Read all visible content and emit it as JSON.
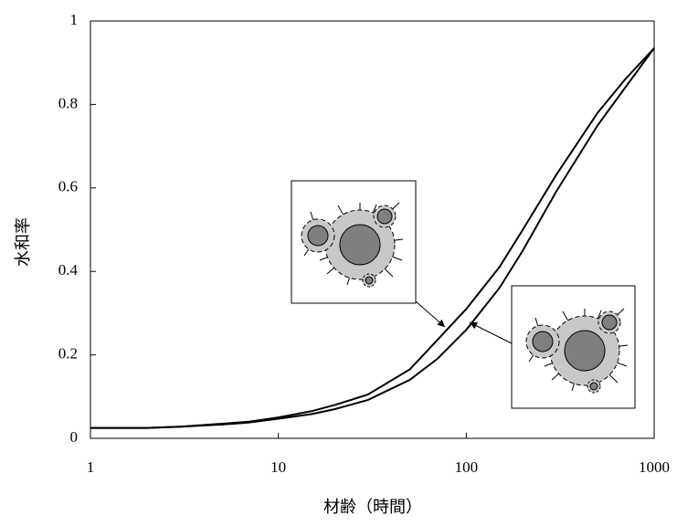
{
  "chart_data": {
    "type": "line",
    "xlabel": "材齢（時間）",
    "ylabel": "水和率",
    "x": [
      1,
      2,
      3,
      5,
      7,
      10,
      15,
      20,
      30,
      50,
      70,
      100,
      150,
      200,
      300,
      500,
      700,
      1000
    ],
    "series": [
      {
        "color": "#000000",
        "values": [
          0.025,
          0.025,
          0.028,
          0.035,
          0.04,
          0.05,
          0.065,
          0.08,
          0.105,
          0.165,
          0.235,
          0.31,
          0.41,
          0.5,
          0.63,
          0.78,
          0.86,
          0.935
        ]
      },
      {
        "color": "#000000",
        "values": [
          0.025,
          0.025,
          0.028,
          0.033,
          0.038,
          0.047,
          0.058,
          0.07,
          0.092,
          0.14,
          0.19,
          0.26,
          0.36,
          0.45,
          0.59,
          0.75,
          0.84,
          0.935
        ]
      }
    ],
    "xscale": "log",
    "xlim": [
      1,
      1000
    ],
    "xticks": [
      1,
      10,
      100,
      1000
    ],
    "ylim": [
      0,
      1
    ],
    "yticks": [
      0,
      0.2,
      0.4,
      0.6,
      0.8,
      1
    ]
  }
}
